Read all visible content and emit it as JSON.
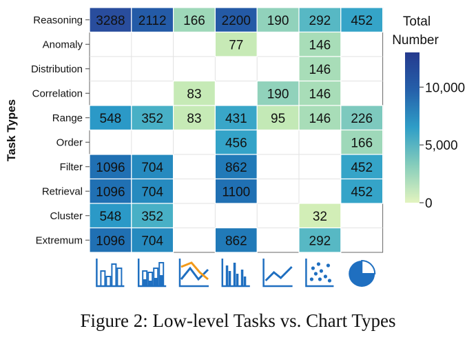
{
  "chart_data": {
    "type": "heatmap",
    "ylabel": "Task Types",
    "rows": [
      "Reasoning",
      "Anomaly",
      "Distribution",
      "Correlation",
      "Range",
      "Order",
      "Filter",
      "Retrieval",
      "Cluster",
      "Extremum"
    ],
    "columns": [
      "bar-chart-icon",
      "stacked-bar-chart-icon",
      "multi-line-chart-icon",
      "grouped-bar-chart-icon",
      "line-chart-icon",
      "scatter-plot-icon",
      "pie-chart-icon"
    ],
    "values": [
      [
        3288,
        2112,
        166,
        2200,
        190,
        292,
        452
      ],
      [
        null,
        null,
        null,
        77,
        null,
        146,
        null
      ],
      [
        null,
        null,
        null,
        null,
        null,
        146,
        null
      ],
      [
        null,
        null,
        83,
        null,
        190,
        146,
        null
      ],
      [
        548,
        352,
        83,
        431,
        95,
        146,
        226
      ],
      [
        null,
        null,
        null,
        456,
        null,
        null,
        166
      ],
      [
        1096,
        704,
        null,
        862,
        null,
        null,
        452
      ],
      [
        1096,
        704,
        null,
        1100,
        null,
        null,
        452
      ],
      [
        548,
        352,
        null,
        null,
        null,
        32,
        null
      ],
      [
        1096,
        704,
        null,
        862,
        null,
        292,
        null
      ]
    ],
    "cell_labels": [
      [
        "3288",
        "2112",
        "166",
        "2200",
        "190",
        "292",
        "452"
      ],
      [
        "",
        "",
        "",
        "77",
        "",
        "146",
        ""
      ],
      [
        "",
        "",
        "",
        "",
        "",
        "146",
        ""
      ],
      [
        "",
        "",
        "83",
        "",
        "190",
        "146",
        ""
      ],
      [
        "548",
        "352",
        "83",
        "431",
        "95",
        "146",
        "226"
      ],
      [
        "",
        "",
        "",
        "456",
        "",
        "",
        "166"
      ],
      [
        "1096",
        "704",
        "",
        "862",
        "",
        "",
        "452"
      ],
      [
        "1096",
        "704",
        "",
        "1100",
        "",
        "",
        "452"
      ],
      [
        "548",
        "352",
        "",
        "",
        "",
        "32",
        ""
      ],
      [
        "1096",
        "704",
        "",
        "862",
        "",
        "292",
        ""
      ]
    ],
    "legend": {
      "title_lines": [
        "Total",
        "Number"
      ],
      "ticks": [
        {
          "value": 0,
          "label": "0"
        },
        {
          "value": 5000,
          "label": "5,000"
        },
        {
          "value": 10000,
          "label": "10,000"
        }
      ],
      "range": [
        0,
        13000
      ],
      "colors": [
        "#e3f4bf",
        "#86cdbb",
        "#2f9ec7",
        "#2560aa",
        "#253a8e"
      ],
      "placement": "right"
    },
    "colorscale_anchors": [
      {
        "value": 0,
        "color": "#d9f0b8"
      },
      {
        "value": 95,
        "color": "#c3e9b6"
      },
      {
        "value": 200,
        "color": "#8cd0bb"
      },
      {
        "value": 300,
        "color": "#52b6c5"
      },
      {
        "value": 500,
        "color": "#2c9ec9"
      },
      {
        "value": 900,
        "color": "#2076b6"
      },
      {
        "value": 1500,
        "color": "#2163ac"
      },
      {
        "value": 3500,
        "color": "#2a4a9b"
      }
    ],
    "grid": true
  },
  "caption": "Figure 2: Low-level Tasks vs. Chart Types"
}
